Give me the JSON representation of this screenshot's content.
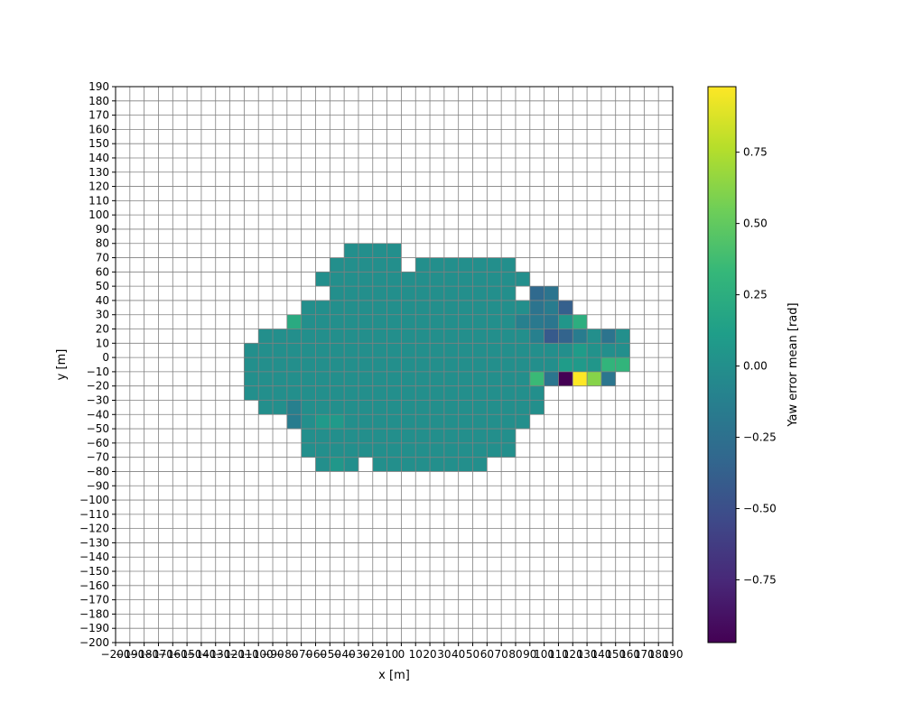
{
  "chart_data": {
    "type": "heatmap",
    "title": "",
    "xlabel": "x [m]",
    "ylabel": "y [m]",
    "colorbar_label": "Yaw error mean [rad]",
    "colormap": "viridis",
    "xlim": [
      -200,
      190
    ],
    "ylim": [
      -200,
      190
    ],
    "cell_size": 10,
    "x_ticks": [
      -200,
      -190,
      -180,
      -170,
      -160,
      -150,
      -140,
      -130,
      -120,
      -110,
      -100,
      -90,
      -80,
      -70,
      -60,
      -50,
      -40,
      -30,
      -20,
      -10,
      0,
      10,
      20,
      30,
      40,
      50,
      60,
      70,
      80,
      90,
      100,
      110,
      120,
      130,
      140,
      150,
      160,
      170,
      180,
      190
    ],
    "x_tick_labels": [
      "−200",
      "−190",
      "−180",
      "−170",
      "−160",
      "−150",
      "−140",
      "−130",
      "−120",
      "−110",
      "−100",
      "−90",
      "−80",
      "−70",
      "−60",
      "−50",
      "−40",
      "−30",
      "−20",
      "−10",
      "0",
      "10",
      "20",
      "30",
      "40",
      "50",
      "60",
      "70",
      "80",
      "90",
      "100",
      "110",
      "120",
      "130",
      "140",
      "150",
      "160",
      "170",
      "180",
      "190"
    ],
    "y_ticks": [
      -200,
      -190,
      -180,
      -170,
      -160,
      -150,
      -140,
      -130,
      -120,
      -110,
      -100,
      -90,
      -80,
      -70,
      -60,
      -50,
      -40,
      -30,
      -20,
      -10,
      0,
      10,
      20,
      30,
      40,
      50,
      60,
      70,
      80,
      90,
      100,
      110,
      120,
      130,
      140,
      150,
      160,
      170,
      180,
      190
    ],
    "y_tick_labels": [
      "−200",
      "−190",
      "−180",
      "−170",
      "−160",
      "−150",
      "−140",
      "−130",
      "−120",
      "−110",
      "−100",
      "−90",
      "−80",
      "−70",
      "−60",
      "−50",
      "−40",
      "−30",
      "−20",
      "−10",
      "0",
      "10",
      "20",
      "30",
      "40",
      "50",
      "60",
      "70",
      "80",
      "90",
      "100",
      "110",
      "120",
      "130",
      "140",
      "150",
      "160",
      "170",
      "180",
      "190"
    ],
    "color_range": [
      -0.97,
      0.98
    ],
    "colorbar_ticks": [
      0.75,
      0.5,
      0.25,
      0.0,
      -0.25,
      -0.5,
      -0.75
    ],
    "colorbar_tick_labels": [
      "0.75",
      "0.50",
      "0.25",
      "0.00",
      "−0.25",
      "−0.50",
      "−0.75"
    ],
    "grid": true,
    "baseline_value": 0.0,
    "row_spans": [
      {
        "y": 70,
        "x_start": -40,
        "x_end": -10
      },
      {
        "y": 60,
        "x_start": -50,
        "x_end": -10
      },
      {
        "y": 60,
        "x_start": 10,
        "x_end": 70
      },
      {
        "y": 50,
        "x_start": -60,
        "x_end": 80
      },
      {
        "y": 40,
        "x_start": -50,
        "x_end": 70
      },
      {
        "y": 30,
        "x_start": -70,
        "x_end": 80
      },
      {
        "y": 20,
        "x_start": -80,
        "x_end": 120
      },
      {
        "y": 10,
        "x_start": -100,
        "x_end": 130
      },
      {
        "y": 10,
        "x_start": 140,
        "x_end": 150
      },
      {
        "y": 0,
        "x_start": -110,
        "x_end": 150
      },
      {
        "y": -10,
        "x_start": -110,
        "x_end": 150
      },
      {
        "y": -20,
        "x_start": -110,
        "x_end": 140
      },
      {
        "y": -30,
        "x_start": -110,
        "x_end": 90
      },
      {
        "y": -40,
        "x_start": -100,
        "x_end": 90
      },
      {
        "y": -50,
        "x_start": -80,
        "x_end": 80
      },
      {
        "y": -60,
        "x_start": -70,
        "x_end": 70
      },
      {
        "y": -70,
        "x_start": -70,
        "x_end": 70
      },
      {
        "y": -80,
        "x_start": -60,
        "x_end": -40
      },
      {
        "y": -80,
        "x_start": -20,
        "x_end": 50
      }
    ],
    "cell_overrides": [
      {
        "x": 90,
        "y": 40,
        "value": -0.3
      },
      {
        "x": 100,
        "y": 40,
        "value": -0.22
      },
      {
        "x": 110,
        "y": 30,
        "value": -0.38
      },
      {
        "x": 90,
        "y": 30,
        "value": -0.22
      },
      {
        "x": 100,
        "y": 30,
        "value": -0.15
      },
      {
        "x": 120,
        "y": 20,
        "value": 0.25
      },
      {
        "x": 110,
        "y": 20,
        "value": 0.05
      },
      {
        "x": 80,
        "y": 20,
        "value": -0.12
      },
      {
        "x": 90,
        "y": 20,
        "value": -0.18
      },
      {
        "x": 100,
        "y": 20,
        "value": -0.2
      },
      {
        "x": -80,
        "y": 20,
        "value": 0.22
      },
      {
        "x": 90,
        "y": 10,
        "value": -0.12
      },
      {
        "x": 100,
        "y": 10,
        "value": -0.42
      },
      {
        "x": 110,
        "y": 10,
        "value": -0.35
      },
      {
        "x": 120,
        "y": 10,
        "value": -0.15
      },
      {
        "x": 140,
        "y": 10,
        "value": -0.22
      },
      {
        "x": 120,
        "y": 0,
        "value": 0.1
      },
      {
        "x": 130,
        "y": 0,
        "value": 0.02
      },
      {
        "x": 110,
        "y": -10,
        "value": 0.1
      },
      {
        "x": 120,
        "y": -10,
        "value": 0.08
      },
      {
        "x": 130,
        "y": -10,
        "value": 0.05
      },
      {
        "x": 140,
        "y": -10,
        "value": 0.3
      },
      {
        "x": 150,
        "y": -10,
        "value": 0.3
      },
      {
        "x": 90,
        "y": -20,
        "value": 0.35
      },
      {
        "x": 100,
        "y": -20,
        "value": -0.2
      },
      {
        "x": 110,
        "y": -20,
        "value": -0.97
      },
      {
        "x": 120,
        "y": -20,
        "value": 0.98
      },
      {
        "x": 130,
        "y": -20,
        "value": 0.62
      },
      {
        "x": 140,
        "y": -20,
        "value": -0.2
      },
      {
        "x": -80,
        "y": -40,
        "value": -0.12
      },
      {
        "x": -80,
        "y": -50,
        "value": -0.15
      },
      {
        "x": -60,
        "y": -50,
        "value": 0.08
      },
      {
        "x": -50,
        "y": -50,
        "value": 0.08
      },
      {
        "x": -50,
        "y": -80,
        "value": 0.06
      }
    ]
  },
  "colors": {
    "grid": "#808080",
    "text": "#000000",
    "background": "#ffffff"
  }
}
